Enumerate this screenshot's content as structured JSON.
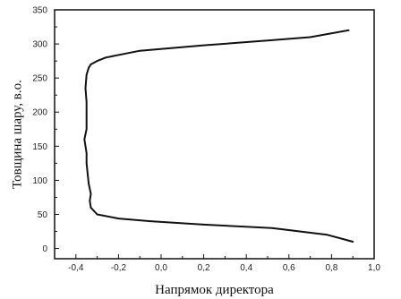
{
  "chart_data": {
    "type": "line",
    "title": "",
    "xlabel": "Напрямок директора",
    "ylabel": "Товщина шару, в.о.",
    "xlim": [
      -0.5,
      1.0
    ],
    "ylim": [
      -15,
      350
    ],
    "grid": false,
    "legend": "none",
    "x_ticks": [
      {
        "value": -0.4,
        "label": "-0,4"
      },
      {
        "value": -0.2,
        "label": "-0,2"
      },
      {
        "value": 0.0,
        "label": "0,0"
      },
      {
        "value": 0.2,
        "label": "0,2"
      },
      {
        "value": 0.4,
        "label": "0,4"
      },
      {
        "value": 0.6,
        "label": "0,6"
      },
      {
        "value": 0.8,
        "label": "0,8"
      },
      {
        "value": 1.0,
        "label": "1,0"
      }
    ],
    "y_ticks": [
      {
        "value": 0,
        "label": "0"
      },
      {
        "value": 50,
        "label": "50"
      },
      {
        "value": 100,
        "label": "100"
      },
      {
        "value": 150,
        "label": "150"
      },
      {
        "value": 200,
        "label": "200"
      },
      {
        "value": 250,
        "label": "250"
      },
      {
        "value": 300,
        "label": "300"
      },
      {
        "value": 350,
        "label": "350"
      }
    ],
    "series": [
      {
        "color": "#111111",
        "points": [
          {
            "x": 0.9,
            "y": 10
          },
          {
            "x": 0.78,
            "y": 20
          },
          {
            "x": 0.52,
            "y": 30
          },
          {
            "x": 0.2,
            "y": 35
          },
          {
            "x": -0.05,
            "y": 40
          },
          {
            "x": -0.2,
            "y": 44
          },
          {
            "x": -0.3,
            "y": 50
          },
          {
            "x": -0.33,
            "y": 60
          },
          {
            "x": -0.335,
            "y": 70
          },
          {
            "x": -0.33,
            "y": 80
          },
          {
            "x": -0.34,
            "y": 95
          },
          {
            "x": -0.345,
            "y": 110
          },
          {
            "x": -0.35,
            "y": 125
          },
          {
            "x": -0.35,
            "y": 140
          },
          {
            "x": -0.36,
            "y": 160
          },
          {
            "x": -0.35,
            "y": 175
          },
          {
            "x": -0.35,
            "y": 195
          },
          {
            "x": -0.35,
            "y": 215
          },
          {
            "x": -0.355,
            "y": 235
          },
          {
            "x": -0.35,
            "y": 255
          },
          {
            "x": -0.34,
            "y": 265
          },
          {
            "x": -0.33,
            "y": 270
          },
          {
            "x": -0.3,
            "y": 275
          },
          {
            "x": -0.26,
            "y": 280
          },
          {
            "x": -0.1,
            "y": 290
          },
          {
            "x": 0.2,
            "y": 298
          },
          {
            "x": 0.5,
            "y": 305
          },
          {
            "x": 0.7,
            "y": 310
          },
          {
            "x": 0.88,
            "y": 320
          }
        ]
      }
    ]
  }
}
